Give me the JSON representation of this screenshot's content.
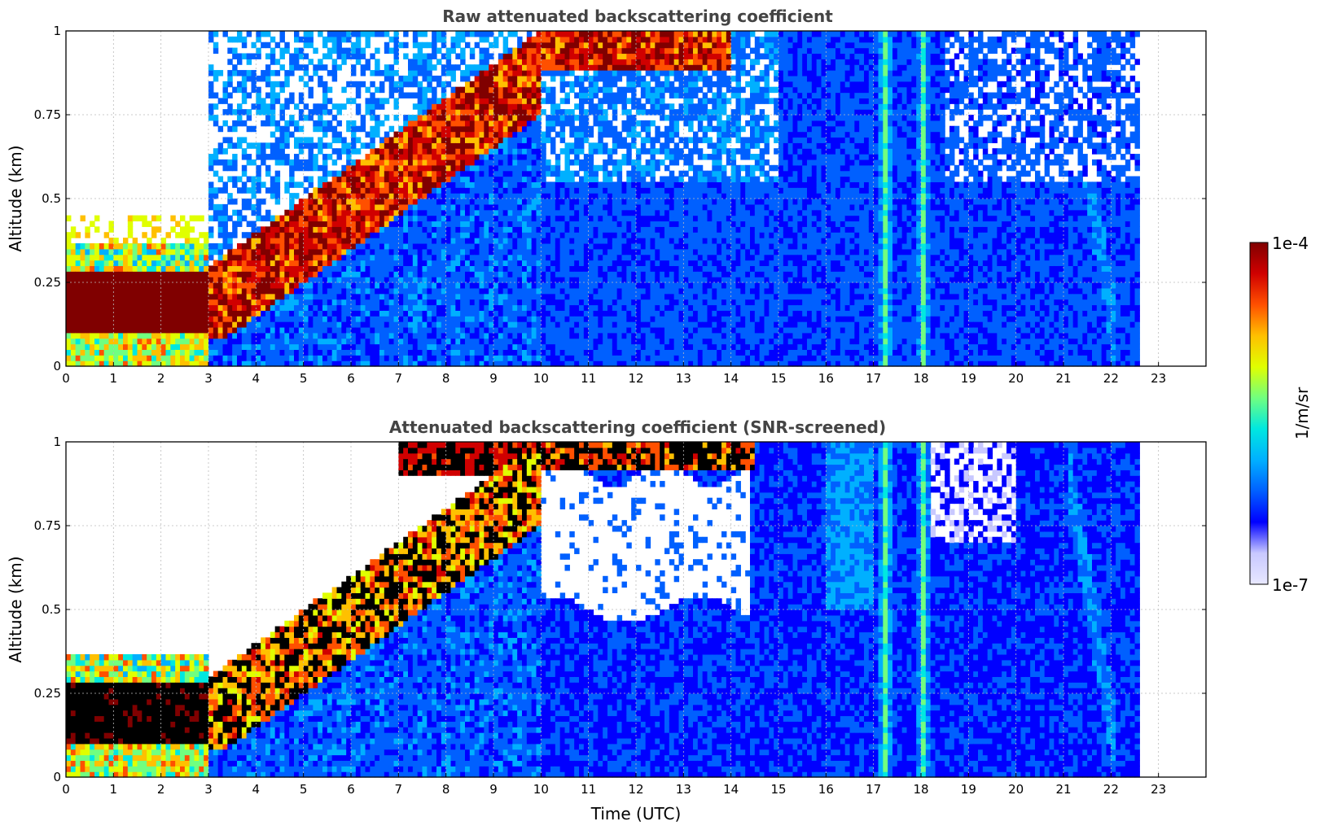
{
  "figure": {
    "colorbar": {
      "max_label": "1e-4",
      "min_label": "1e-7",
      "unit_label": "1/m/sr"
    },
    "colormap": [
      "#e8e8ff",
      "#c8c8ff",
      "#0000ff",
      "#0060ff",
      "#00b0ff",
      "#00e8e0",
      "#70ff80",
      "#e0ff00",
      "#ffc000",
      "#ff5000",
      "#d00000",
      "#800000"
    ],
    "screened_saturation_color": "#000000"
  },
  "chart_data": [
    {
      "type": "heatmap",
      "title": "Raw attenuated backscattering coefficient",
      "xlabel": "",
      "ylabel": "Altitude (km)",
      "xlim": [
        0,
        24
      ],
      "ylim": [
        0,
        1
      ],
      "x_ticks": [
        "0",
        "1",
        "2",
        "3",
        "4",
        "5",
        "6",
        "7",
        "8",
        "9",
        "10",
        "11",
        "12",
        "13",
        "14",
        "15",
        "16",
        "17",
        "18",
        "19",
        "20",
        "21",
        "22",
        "23"
      ],
      "y_ticks": [
        "0",
        "0.25",
        "0.5",
        "0.75",
        "1"
      ],
      "grid": true,
      "data_end_time": 22.6,
      "color_scale": {
        "min": 1e-07,
        "max": 0.0001,
        "log": true
      },
      "features": {
        "boundary_layer_top_km": [
          [
            0,
            0.3
          ],
          [
            3,
            0.3
          ],
          [
            4,
            0.35
          ],
          [
            5,
            0.4
          ],
          [
            6,
            0.5
          ],
          [
            7,
            0.65
          ],
          [
            8,
            0.8
          ],
          [
            9,
            0.95
          ],
          [
            10,
            1.0
          ]
        ],
        "saturated_layer_km": [
          [
            0,
            0.08,
            0.28
          ],
          [
            3,
            0.12,
            0.32
          ]
        ],
        "vertical_rain_streaks_utc": [
          17.25,
          18.05
        ]
      }
    },
    {
      "type": "heatmap",
      "title": "Attenuated backscattering coefficient (SNR-screened)",
      "xlabel": "Time (UTC)",
      "ylabel": "Altitude (km)",
      "xlim": [
        0,
        24
      ],
      "ylim": [
        0,
        1
      ],
      "x_ticks": [
        "0",
        "1",
        "2",
        "3",
        "4",
        "5",
        "6",
        "7",
        "8",
        "9",
        "10",
        "11",
        "12",
        "13",
        "14",
        "15",
        "16",
        "17",
        "18",
        "19",
        "20",
        "21",
        "22",
        "23"
      ],
      "y_ticks": [
        "0",
        "0.25",
        "0.5",
        "0.75",
        "1"
      ],
      "grid": true,
      "data_end_time": 22.6,
      "color_scale": {
        "min": 1e-07,
        "max": 0.0001,
        "log": true
      },
      "features": {
        "screened_out_region_utc": [
          9.5,
          14.5
        ],
        "screened_out_alt_km": [
          0.5,
          0.9
        ],
        "vertical_rain_streaks_utc": [
          17.25,
          18.05
        ]
      }
    }
  ]
}
